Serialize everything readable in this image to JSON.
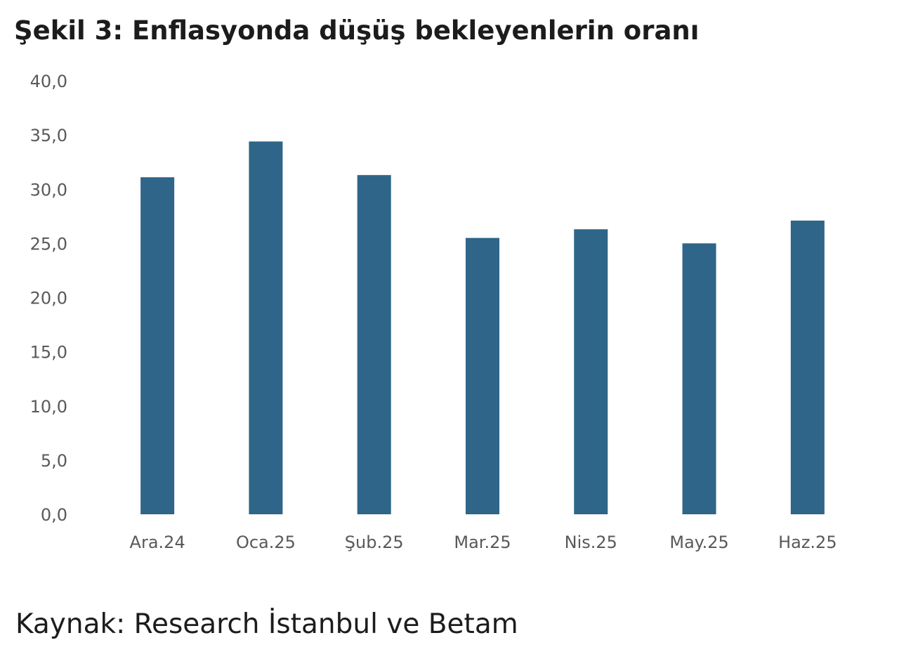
{
  "figure": {
    "title": "Şekil 3: Enflasyonda düşüş bekleyenlerin oranı",
    "source": "Kaynak: Research İstanbul ve Betam"
  },
  "chart_data": {
    "type": "bar",
    "categories": [
      "Ara.24",
      "Oca.25",
      "Şub.25",
      "Mar.25",
      "Nis.25",
      "May.25",
      "Haz.25"
    ],
    "values": [
      31.1,
      34.4,
      31.3,
      25.5,
      26.3,
      25.0,
      27.1
    ],
    "ylim": [
      0,
      40
    ],
    "yticks": [
      "0,0",
      "5,0",
      "10,0",
      "15,0",
      "20,0",
      "25,0",
      "30,0",
      "35,0",
      "40,0"
    ],
    "grid": false,
    "legend": "none",
    "bar_color": "#2e6588",
    "tick_color": "#595959"
  }
}
